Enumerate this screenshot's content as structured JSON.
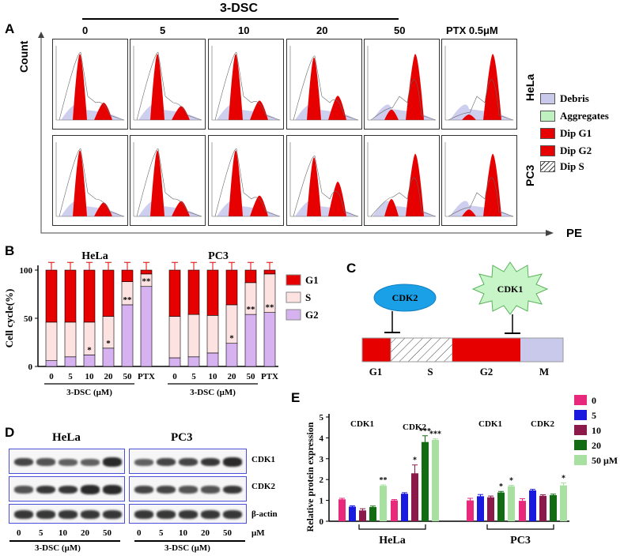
{
  "panels": {
    "A": "A",
    "B": "B",
    "C": "C",
    "D": "D",
    "E": "E"
  },
  "panelA": {
    "treatment_title": "3-DSC",
    "columns": [
      "0",
      "5",
      "10",
      "20",
      "50",
      "PTX 0.5μM"
    ],
    "rows": [
      "HeLa",
      "PC3"
    ],
    "y_axis": "Count",
    "x_axis": "PE",
    "legend": [
      {
        "label": "Debris",
        "color": "#c9c9ec"
      },
      {
        "label": "Aggregates",
        "color": "#bff0c0"
      },
      {
        "label": "Dip G1",
        "color": "#e60000"
      },
      {
        "label": "Dip G2",
        "color": "#e60000"
      },
      {
        "label": "Dip S",
        "color": "hatch"
      }
    ]
  },
  "chart_data": [
    {
      "type": "bar",
      "panel": "B",
      "ylabel": "Cell cycle(%)",
      "ylim": [
        0,
        100
      ],
      "yticks": [
        0,
        50,
        100
      ],
      "groups": [
        {
          "title": "HeLa",
          "categories": [
            "0",
            "5",
            "10",
            "20",
            "50",
            "PTX"
          ],
          "xlabel": "3-DSC (μM)",
          "series": [
            {
              "name": "G2",
              "values": [
                6,
                10,
                12,
                19,
                64,
                83
              ]
            },
            {
              "name": "S",
              "values": [
                40,
                36,
                34,
                33,
                24,
                13
              ]
            },
            {
              "name": "G1",
              "values": [
                54,
                54,
                54,
                48,
                12,
                4
              ]
            }
          ],
          "sig": [
            "",
            "",
            "*",
            "*",
            "**",
            "**"
          ]
        },
        {
          "title": "PC3",
          "categories": [
            "0",
            "5",
            "10",
            "20",
            "50",
            "PTX"
          ],
          "xlabel": "3-DSC (μM)",
          "series": [
            {
              "name": "G2",
              "values": [
                9,
                10,
                14,
                24,
                54,
                56
              ]
            },
            {
              "name": "S",
              "values": [
                43,
                44,
                39,
                40,
                33,
                40
              ]
            },
            {
              "name": "G1",
              "values": [
                48,
                46,
                47,
                36,
                13,
                4
              ]
            }
          ],
          "sig": [
            "",
            "",
            "",
            "*",
            "**",
            "**"
          ]
        }
      ],
      "legend": [
        {
          "name": "G1",
          "color": "#e60000"
        },
        {
          "name": "S",
          "color": "#fde2e2"
        },
        {
          "name": "G2",
          "color": "#d6b3f0"
        }
      ]
    },
    {
      "type": "bar",
      "panel": "E",
      "ylabel": "Relative protein expression",
      "ylim": [
        0,
        5
      ],
      "yticks": [
        0,
        1,
        2,
        3,
        4,
        5
      ],
      "series_legend": [
        "0",
        "5",
        "10",
        "20",
        "50 μM"
      ],
      "colors": [
        "#e8287a",
        "#1a1adf",
        "#8b1a4a",
        "#136b13",
        "#a7e0a0"
      ],
      "groups": [
        {
          "cell": "HeLa",
          "protein": "CDK1",
          "values": [
            1.05,
            0.7,
            0.52,
            0.68,
            1.7
          ],
          "errors": [
            0.05,
            0.04,
            0.08,
            0.05,
            0.04
          ],
          "sig": [
            "",
            "",
            "",
            "",
            "**"
          ]
        },
        {
          "cell": "HeLa",
          "protein": "CDK2",
          "values": [
            1.0,
            1.32,
            2.3,
            3.8,
            3.9
          ],
          "errors": [
            0.04,
            0.05,
            0.4,
            0.3,
            0.05
          ],
          "sig": [
            "",
            "",
            "*",
            "***",
            "***"
          ]
        },
        {
          "cell": "PC3",
          "protein": "CDK1",
          "values": [
            1.0,
            1.2,
            1.15,
            1.38,
            1.68
          ],
          "errors": [
            0.1,
            0.08,
            0.06,
            0.05,
            0.04
          ],
          "sig": [
            "",
            "",
            "",
            "*",
            "*"
          ]
        },
        {
          "cell": "PC3",
          "protein": "CDK2",
          "values": [
            0.98,
            1.48,
            1.22,
            1.25,
            1.72
          ],
          "errors": [
            0.1,
            0.05,
            0.05,
            0.05,
            0.12
          ],
          "sig": [
            "",
            "",
            "",
            "",
            "*"
          ]
        }
      ],
      "group_labels": [
        "CDK1",
        "CDK2",
        "CDK1",
        "CDK2"
      ],
      "cell_labels": [
        "HeLa",
        "PC3"
      ]
    }
  ],
  "panelC": {
    "cdk2": "CDK2",
    "cdk1": "CDK1",
    "phases": [
      "G1",
      "S",
      "G2",
      "M"
    ]
  },
  "panelD": {
    "cell_lines": [
      "HeLa",
      "PC3"
    ],
    "proteins": [
      "CDK1",
      "CDK2",
      "β-actin"
    ],
    "lanes": [
      "0",
      "5",
      "10",
      "20",
      "50"
    ],
    "unit": "μM",
    "xlabel": "3-DSC (μM)"
  }
}
